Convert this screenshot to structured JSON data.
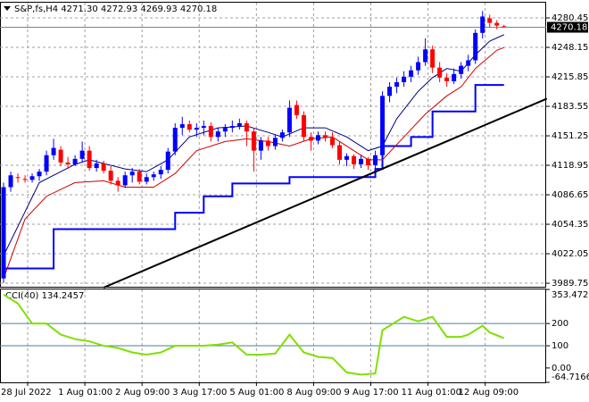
{
  "chart_data": [
    {
      "type": "candlestick",
      "title": "S&P,fs,H4  4271.30 4272.93 4269.93 4270.18",
      "ylim": [
        3984.9,
        4298.1
      ],
      "yticks": [
        4280.45,
        4248.15,
        4215.85,
        4183.55,
        4151.25,
        4118.95,
        4086.65,
        4054.35,
        4022.05,
        3989.75
      ],
      "xlim": [
        -0.5,
        75.9
      ],
      "xticks": [
        {
          "value": 0,
          "label": "28 Jul 2022"
        },
        {
          "value": 8,
          "label": "1 Aug 01:00"
        },
        {
          "value": 16,
          "label": "2 Aug 09:00"
        },
        {
          "value": 24,
          "label": "3 Aug 17:00"
        },
        {
          "value": 32,
          "label": "5 Aug 01:00"
        },
        {
          "value": 40,
          "label": "8 Aug 09:00"
        },
        {
          "value": 48,
          "label": "9 Aug 17:00"
        },
        {
          "value": 56,
          "label": "11 Aug 01:00"
        },
        {
          "value": 64,
          "label": "12 Aug 09:00"
        }
      ],
      "grid": true,
      "up_color": "#0000ff",
      "down_color": "#ff0000",
      "last_price": {
        "value": 4270.18,
        "label": "4270.18"
      },
      "open": [
        3995,
        4095,
        4106,
        4104,
        4103,
        4107,
        4112,
        4130,
        4136,
        4122,
        4120,
        4126,
        4135,
        4116,
        4121,
        4113,
        4102,
        4097,
        4108,
        4112,
        4101,
        4106,
        4109,
        4114,
        4134,
        4160,
        4164,
        4158,
        4160,
        4162,
        4150,
        4156,
        4160,
        4162,
        4165,
        4156,
        4135,
        4146,
        4140,
        4149,
        4155,
        4185,
        4174,
        4150,
        4146,
        4152,
        4149,
        4141,
        4125,
        4129,
        4120,
        4126,
        4119,
        4130,
        4195,
        4205,
        4210,
        4216,
        4223,
        4232,
        4246,
        4226,
        4215,
        4211,
        4219,
        4228,
        4234,
        4264,
        4280,
        4275,
        4271.3
      ],
      "high": [
        4100,
        4112,
        4110,
        4108,
        4110,
        4115,
        4135,
        4148,
        4140,
        4128,
        4130,
        4145,
        4140,
        4125,
        4124,
        4118,
        4106,
        4112,
        4116,
        4115,
        4110,
        4112,
        4118,
        4138,
        4165,
        4172,
        4168,
        4165,
        4168,
        4166,
        4160,
        4164,
        4168,
        4170,
        4168,
        4160,
        4150,
        4150,
        4152,
        4158,
        4190,
        4190,
        4178,
        4155,
        4156,
        4156,
        4155,
        4145,
        4132,
        4131,
        4130,
        4128,
        4135,
        4200,
        4210,
        4215,
        4222,
        4228,
        4238,
        4258,
        4250,
        4232,
        4220,
        4225,
        4232,
        4240,
        4268,
        4288,
        4284,
        4278,
        4272.93
      ],
      "low": [
        3990,
        4090,
        4100,
        4100,
        4100,
        4102,
        4108,
        4125,
        4118,
        4115,
        4118,
        4122,
        4113,
        4112,
        4110,
        4098,
        4090,
        4094,
        4100,
        4098,
        4098,
        4102,
        4104,
        4110,
        4130,
        4152,
        4155,
        4150,
        4152,
        4145,
        4145,
        4150,
        4155,
        4158,
        4140,
        4112,
        4125,
        4135,
        4136,
        4145,
        4150,
        4170,
        4145,
        4135,
        4142,
        4145,
        4138,
        4120,
        4118,
        4115,
        4116,
        4114,
        4115,
        4128,
        4188,
        4198,
        4205,
        4210,
        4218,
        4228,
        4220,
        4210,
        4205,
        4208,
        4214,
        4222,
        4230,
        4258,
        4270,
        4268,
        4269.93
      ],
      "close": [
        4095,
        4108,
        4105,
        4103,
        4107,
        4112,
        4130,
        4138,
        4122,
        4120,
        4126,
        4135,
        4116,
        4121,
        4113,
        4102,
        4097,
        4108,
        4112,
        4101,
        4106,
        4109,
        4114,
        4134,
        4160,
        4164,
        4158,
        4160,
        4162,
        4150,
        4156,
        4160,
        4162,
        4165,
        4156,
        4135,
        4146,
        4140,
        4149,
        4155,
        4182,
        4174,
        4150,
        4146,
        4152,
        4149,
        4141,
        4125,
        4129,
        4120,
        4126,
        4119,
        4130,
        4195,
        4205,
        4210,
        4216,
        4223,
        4232,
        4246,
        4226,
        4215,
        4211,
        4219,
        4228,
        4234,
        4264,
        4282,
        4275,
        4272,
        4270.18
      ],
      "series": [
        {
          "color": "#0000ff",
          "width": 2,
          "step": true,
          "x": [
            0,
            7,
            24,
            28,
            32,
            40,
            52,
            53,
            57,
            60,
            66,
            70
          ],
          "values": [
            4006,
            4049,
            4067,
            4085,
            4099,
            4106,
            4115,
            4140,
            4150,
            4178,
            4207,
            4207
          ]
        },
        {
          "color": "#000080",
          "width": 1,
          "x": [
            0,
            5,
            10,
            12,
            17,
            20,
            23,
            26,
            30,
            34,
            37,
            39,
            42,
            45,
            48,
            51,
            53,
            55,
            58,
            60,
            62,
            64,
            66,
            68,
            70
          ],
          "values": [
            4020,
            4100,
            4120,
            4125,
            4115,
            4112,
            4125,
            4150,
            4160,
            4162,
            4155,
            4150,
            4160,
            4160,
            4150,
            4135,
            4140,
            4170,
            4200,
            4215,
            4225,
            4222,
            4240,
            4255,
            4262
          ]
        },
        {
          "color": "#cc0000",
          "width": 1,
          "x": [
            0,
            3,
            6,
            10,
            14,
            17,
            21,
            24,
            27,
            31,
            34,
            37,
            40,
            43,
            46,
            49,
            51,
            53,
            56,
            59,
            62,
            64,
            66,
            69,
            70
          ],
          "values": [
            3995,
            4060,
            4085,
            4100,
            4102,
            4095,
            4095,
            4110,
            4135,
            4145,
            4148,
            4145,
            4140,
            4148,
            4150,
            4135,
            4125,
            4125,
            4150,
            4175,
            4195,
            4205,
            4225,
            4245,
            4248
          ]
        },
        {
          "color": "#000000",
          "width": 2,
          "x": [
            14,
            76
          ],
          "values": [
            3985,
            4192
          ]
        }
      ]
    },
    {
      "type": "line",
      "title": "CCI(40) 134.2457",
      "ylim": [
        -64.71667,
        353.4721
      ],
      "yticks": [
        353.4721,
        200,
        100,
        {
          "value": 0,
          "label": "0.00"
        },
        -64.71667
      ],
      "levels": [
        200,
        100
      ],
      "level_color": "#4a7f9f",
      "series": [
        {
          "color": "#80e000",
          "x": [
            0,
            2,
            4,
            6,
            8,
            10,
            12,
            14,
            16,
            18,
            20,
            22,
            24,
            26,
            28,
            30,
            32,
            34,
            36,
            38,
            40,
            42,
            44,
            46,
            48,
            50,
            52,
            53,
            56,
            58,
            60,
            62,
            64,
            65,
            67,
            68,
            70
          ],
          "values": [
            330,
            290,
            200,
            200,
            150,
            130,
            120,
            100,
            90,
            70,
            60,
            70,
            100,
            100,
            100,
            105,
            115,
            60,
            60,
            65,
            150,
            70,
            50,
            45,
            -20,
            -30,
            -25,
            170,
            230,
            210,
            230,
            140,
            140,
            150,
            190,
            160,
            134.2457
          ]
        }
      ]
    }
  ]
}
